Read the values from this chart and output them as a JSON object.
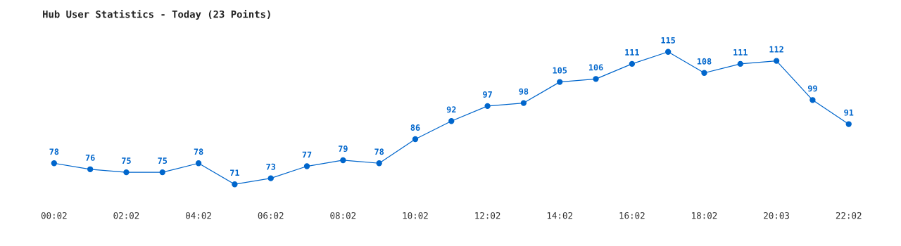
{
  "chart_data": {
    "type": "line",
    "title": "Hub User Statistics - Today (23 Points)",
    "categories": [
      "00:02",
      null,
      "02:02",
      null,
      "04:02",
      null,
      "06:02",
      null,
      "08:02",
      null,
      "10:02",
      null,
      "12:02",
      null,
      "14:02",
      null,
      "16:02",
      null,
      "18:02",
      null,
      "20:03",
      null,
      "22:02"
    ],
    "series": [
      {
        "color": "#0066cc",
        "values": [
          78,
          76,
          75,
          75,
          78,
          71,
          73,
          77,
          79,
          78,
          86,
          92,
          97,
          98,
          105,
          106,
          111,
          115,
          108,
          111,
          112,
          99,
          91
        ]
      }
    ],
    "data_labels": true,
    "marker": "circle",
    "line_style": "solid",
    "grid": false,
    "legend": false
  }
}
